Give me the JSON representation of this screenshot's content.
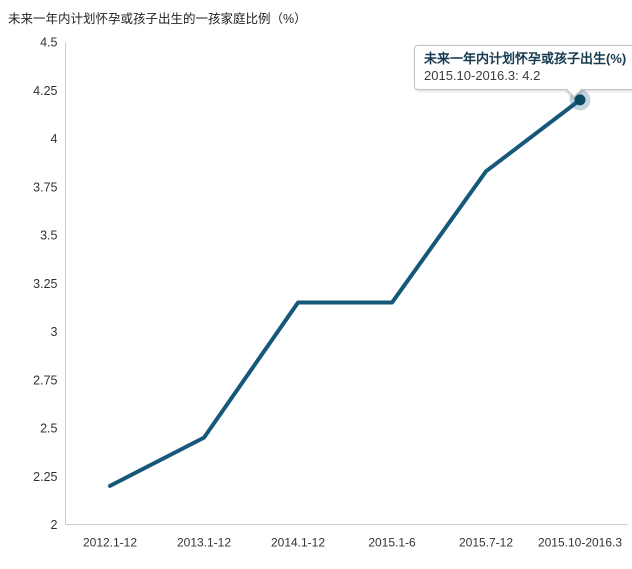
{
  "page_title": "未来一年内计划怀孕或孩子出生的一孩家庭比例（%）",
  "colors": {
    "line": "#16587a",
    "marker_fill": "#0e4a66",
    "marker_halo": "#16587a",
    "axis": "#cccccc",
    "tick_text": "#333333",
    "tooltip_title_text": "#173a50",
    "background": "#ffffff"
  },
  "tooltip": {
    "title": "未来一年内计划怀孕或孩子出生(%)",
    "value_line": "2015.10-2016.3: 4.2"
  },
  "chart_data": {
    "type": "line",
    "title": "未来一年内计划怀孕或孩子出生的一孩家庭比例（%）",
    "categories": [
      "2012.1-12",
      "2013.1-12",
      "2014.1-12",
      "2015.1-6",
      "2015.7-12",
      "2015.10-2016.3"
    ],
    "series": [
      {
        "name": "未来一年内计划怀孕或孩子出生(%)",
        "values": [
          2.2,
          2.45,
          3.15,
          3.15,
          3.83,
          4.2
        ]
      }
    ],
    "xlabel": "",
    "ylabel": "",
    "ylim": [
      2,
      4.5
    ],
    "yticks": [
      "2",
      "2.25",
      "2.5",
      "2.75",
      "3",
      "3.25",
      "3.5",
      "3.75",
      "4",
      "4.25",
      "4.5"
    ],
    "grid": false,
    "legend": false,
    "highlight_point_index": 5,
    "highlighted_value_label": "4.2"
  }
}
